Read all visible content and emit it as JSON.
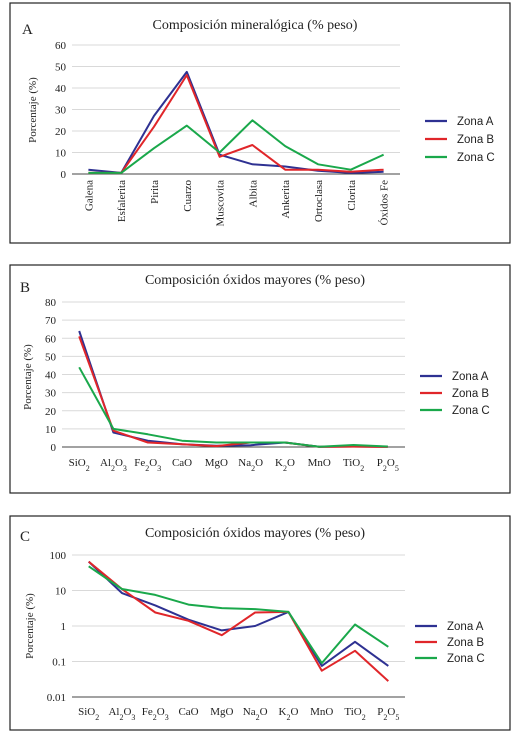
{
  "colors": {
    "Zona A": "#2e3192",
    "Zona B": "#e0262a",
    "Zona C": "#1aa84b"
  },
  "chart_data": [
    {
      "panel": "A",
      "type": "line",
      "title": "Composición mineralógica (% peso)",
      "ylabel": "Porcentaje (%)",
      "yscale": "linear",
      "ylim": [
        0,
        60
      ],
      "yticks": [
        "0",
        "10",
        "20",
        "30",
        "40",
        "50",
        "60"
      ],
      "grid": true,
      "legend": "right",
      "categories": [
        "Galena",
        "Esfalerita",
        "Pirita",
        "Cuarzo",
        "Muscovita",
        "Albita",
        "Ankerita",
        "Ortoclasa",
        "Clorita",
        "Óxidos Fe"
      ],
      "series": [
        {
          "name": "Zona A",
          "values": [
            2,
            0.5,
            27,
            47.5,
            9,
            4.5,
            3.5,
            1.5,
            0.5,
            1
          ]
        },
        {
          "name": "Zona B",
          "values": [
            0.5,
            0.5,
            22,
            46,
            8,
            13.5,
            2,
            2,
            1,
            2
          ]
        },
        {
          "name": "Zona C",
          "values": [
            0.5,
            0.5,
            12,
            22.5,
            10,
            25,
            13,
            4.5,
            2,
            9
          ]
        }
      ]
    },
    {
      "panel": "B",
      "type": "line",
      "title": "Composición óxidos mayores (% peso)",
      "ylabel": "Porcentaje (%)",
      "yscale": "linear",
      "ylim": [
        0,
        80
      ],
      "yticks": [
        "0",
        "10",
        "20",
        "30",
        "40",
        "50",
        "60",
        "70",
        "80"
      ],
      "grid": true,
      "legend": "right",
      "categories": [
        "SiO2",
        "Al2O3",
        "Fe2O3",
        "CaO",
        "MgO",
        "Na2O",
        "K2O",
        "MnO",
        "TiO2",
        "P2O5"
      ],
      "series": [
        {
          "name": "Zona A",
          "values": [
            64,
            8,
            3.5,
            1.5,
            0.7,
            1,
            2.5,
            0.1,
            0.3,
            0.1
          ]
        },
        {
          "name": "Zona B",
          "values": [
            61,
            9,
            2.5,
            1.5,
            0.5,
            2.5,
            2.5,
            0.05,
            0.2,
            0.03
          ]
        },
        {
          "name": "Zona C",
          "values": [
            44,
            10,
            7,
            3.5,
            2.5,
            2.5,
            2.5,
            0.1,
            1.1,
            0.3
          ]
        }
      ]
    },
    {
      "panel": "C",
      "type": "line",
      "title": "Composición óxidos mayores (% peso)",
      "ylabel": "Porcentaje (%)",
      "yscale": "log",
      "ylim": [
        0.01,
        100
      ],
      "yticks": [
        "0.01",
        "0.1",
        "1",
        "10",
        "100"
      ],
      "grid": true,
      "legend": "right",
      "categories": [
        "SiO2",
        "Al2O3",
        "Fe2O3",
        "CaO",
        "MgO",
        "Na2O",
        "K2O",
        "MnO",
        "TiO2",
        "P2O5"
      ],
      "series": [
        {
          "name": "Zona A",
          "values": [
            65,
            8.5,
            3.8,
            1.5,
            0.75,
            1,
            2.5,
            0.075,
            0.36,
            0.075
          ]
        },
        {
          "name": "Zona B",
          "values": [
            65,
            11,
            2.4,
            1.4,
            0.55,
            2.4,
            2.5,
            0.055,
            0.2,
            0.028
          ]
        },
        {
          "name": "Zona C",
          "values": [
            48,
            11,
            7.5,
            4,
            3.2,
            3,
            2.5,
            0.09,
            1.1,
            0.26
          ]
        }
      ]
    }
  ]
}
